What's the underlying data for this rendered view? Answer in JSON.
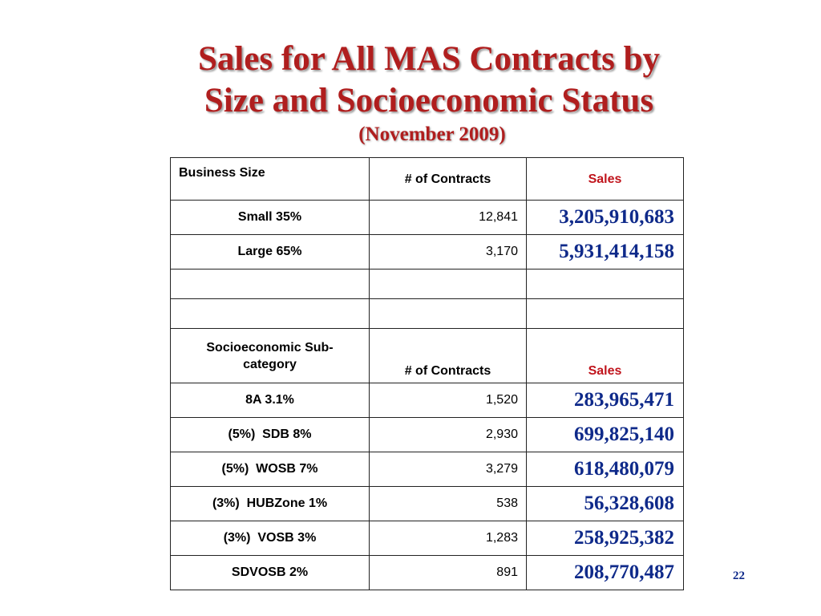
{
  "slide": {
    "title_line1": "Sales for All MAS Contracts by",
    "title_line2": "Size and Socioeconomic Status",
    "subtitle": "(November 2009)",
    "page_number": "22"
  },
  "table": {
    "size_header": [
      "Business Size",
      "# of Contracts",
      "Sales"
    ],
    "size_rows": [
      [
        "Small 35%",
        "12,841",
        "3,205,910,683"
      ],
      [
        "Large 65%",
        "3,170",
        "5,931,414,158"
      ]
    ],
    "socio_header": [
      "Socioeconomic Sub-category",
      "# of Contracts",
      "Sales"
    ],
    "socio_rows": [
      [
        "8A 3.1%",
        "1,520",
        "283,965,471"
      ],
      [
        "(5%)  SDB 8%",
        "2,930",
        "699,825,140"
      ],
      [
        "(5%)  WOSB 7%",
        "3,279",
        "618,480,079"
      ],
      [
        "(3%)  HUBZone 1%",
        "538",
        "56,328,608"
      ],
      [
        "(3%)  VOSB 3%",
        "1,283",
        "258,925,382"
      ],
      [
        "SDVOSB 2%",
        "891",
        "208,770,487"
      ]
    ]
  },
  "colors": {
    "title": "#b01e1e",
    "sales_header": "#c0141c",
    "sales_values": "#0f2a8a"
  }
}
